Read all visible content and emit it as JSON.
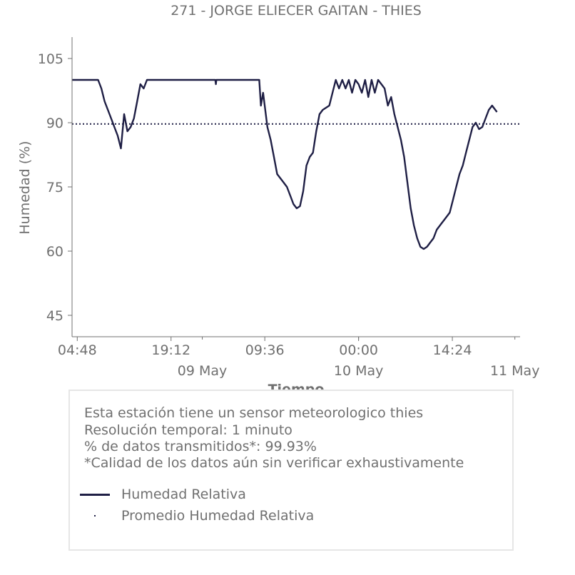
{
  "chart_data": {
    "type": "line",
    "title": "271 - JORGE ELIECER GAITAN - THIES",
    "xlabel": "Tiempo",
    "ylabel": "Humedad (%)",
    "ylim": [
      40,
      110
    ],
    "yticks": [
      45,
      60,
      75,
      90,
      105
    ],
    "xlim": [
      "2019-05-08 04:00",
      "2019-05-11 00:48"
    ],
    "xticks": [
      {
        "label": "04:48",
        "at": "2019-05-08 04:48"
      },
      {
        "label": "19:12",
        "at": "2019-05-08 19:12"
      },
      {
        "label": "09:36",
        "at": "2019-05-09 09:36"
      },
      {
        "label": "00:00",
        "at": "2019-05-10 00:00"
      },
      {
        "label": "14:24",
        "at": "2019-05-10 14:24"
      }
    ],
    "xticks_minor": [
      {
        "label": "09 May",
        "at": "2019-05-09 00:00"
      },
      {
        "label": "10 May",
        "at": "2019-05-10 00:00"
      },
      {
        "label": "11 May",
        "at": "2019-05-11 00:00"
      }
    ],
    "grid": false,
    "mean_line": {
      "name": "Promedio Humedad Relativa",
      "value": 89.7,
      "style": "dotted"
    },
    "series": [
      {
        "name": "Humedad Relativa",
        "color": "#1f1f45",
        "points": [
          [
            "2019-05-08 04:00",
            100
          ],
          [
            "2019-05-08 08:00",
            100
          ],
          [
            "2019-05-08 08:30",
            98
          ],
          [
            "2019-05-08 09:00",
            95
          ],
          [
            "2019-05-08 09:30",
            93
          ],
          [
            "2019-05-08 10:00",
            91
          ],
          [
            "2019-05-08 10:30",
            89
          ],
          [
            "2019-05-08 11:00",
            87
          ],
          [
            "2019-05-08 11:30",
            84
          ],
          [
            "2019-05-08 12:00",
            92
          ],
          [
            "2019-05-08 12:30",
            88
          ],
          [
            "2019-05-08 13:00",
            89
          ],
          [
            "2019-05-08 13:30",
            91
          ],
          [
            "2019-05-08 14:00",
            95
          ],
          [
            "2019-05-08 14:30",
            99
          ],
          [
            "2019-05-08 15:00",
            98
          ],
          [
            "2019-05-08 15:30",
            100
          ],
          [
            "2019-05-08 20:00",
            100
          ],
          [
            "2019-05-09 02:00",
            100
          ],
          [
            "2019-05-09 02:05",
            99
          ],
          [
            "2019-05-09 02:10",
            100
          ],
          [
            "2019-05-09 08:45",
            100
          ],
          [
            "2019-05-09 09:00",
            94
          ],
          [
            "2019-05-09 09:20",
            97
          ],
          [
            "2019-05-09 09:40",
            93
          ],
          [
            "2019-05-09 10:00",
            89
          ],
          [
            "2019-05-09 10:30",
            86
          ],
          [
            "2019-05-09 11:00",
            82
          ],
          [
            "2019-05-09 11:30",
            78
          ],
          [
            "2019-05-09 12:00",
            77
          ],
          [
            "2019-05-09 12:30",
            76
          ],
          [
            "2019-05-09 13:00",
            75
          ],
          [
            "2019-05-09 13:30",
            73
          ],
          [
            "2019-05-09 14:00",
            71
          ],
          [
            "2019-05-09 14:30",
            70
          ],
          [
            "2019-05-09 15:00",
            70.5
          ],
          [
            "2019-05-09 15:30",
            74
          ],
          [
            "2019-05-09 16:00",
            80
          ],
          [
            "2019-05-09 16:30",
            82
          ],
          [
            "2019-05-09 17:00",
            83
          ],
          [
            "2019-05-09 17:30",
            88
          ],
          [
            "2019-05-09 18:00",
            92
          ],
          [
            "2019-05-09 18:30",
            93
          ],
          [
            "2019-05-09 19:00",
            93.5
          ],
          [
            "2019-05-09 19:30",
            94
          ],
          [
            "2019-05-09 20:00",
            97
          ],
          [
            "2019-05-09 20:30",
            100
          ],
          [
            "2019-05-09 21:00",
            98
          ],
          [
            "2019-05-09 21:30",
            100
          ],
          [
            "2019-05-09 22:00",
            98
          ],
          [
            "2019-05-09 22:30",
            100
          ],
          [
            "2019-05-09 23:00",
            97
          ],
          [
            "2019-05-09 23:30",
            100
          ],
          [
            "2019-05-10 00:00",
            99
          ],
          [
            "2019-05-10 00:30",
            97
          ],
          [
            "2019-05-10 01:00",
            100
          ],
          [
            "2019-05-10 01:30",
            96
          ],
          [
            "2019-05-10 02:00",
            100
          ],
          [
            "2019-05-10 02:30",
            97
          ],
          [
            "2019-05-10 03:00",
            100
          ],
          [
            "2019-05-10 03:30",
            99
          ],
          [
            "2019-05-10 04:00",
            98
          ],
          [
            "2019-05-10 04:30",
            94
          ],
          [
            "2019-05-10 05:00",
            96
          ],
          [
            "2019-05-10 05:30",
            92
          ],
          [
            "2019-05-10 06:00",
            89
          ],
          [
            "2019-05-10 06:30",
            86
          ],
          [
            "2019-05-10 07:00",
            82
          ],
          [
            "2019-05-10 07:30",
            76
          ],
          [
            "2019-05-10 08:00",
            70
          ],
          [
            "2019-05-10 08:30",
            66
          ],
          [
            "2019-05-10 09:00",
            63
          ],
          [
            "2019-05-10 09:30",
            61
          ],
          [
            "2019-05-10 10:00",
            60.5
          ],
          [
            "2019-05-10 10:30",
            61
          ],
          [
            "2019-05-10 11:00",
            62
          ],
          [
            "2019-05-10 11:30",
            63
          ],
          [
            "2019-05-10 12:00",
            65
          ],
          [
            "2019-05-10 12:30",
            66
          ],
          [
            "2019-05-10 13:00",
            67
          ],
          [
            "2019-05-10 13:30",
            68
          ],
          [
            "2019-05-10 14:00",
            69
          ],
          [
            "2019-05-10 14:30",
            72
          ],
          [
            "2019-05-10 15:00",
            75
          ],
          [
            "2019-05-10 15:30",
            78
          ],
          [
            "2019-05-10 16:00",
            80
          ],
          [
            "2019-05-10 16:30",
            83
          ],
          [
            "2019-05-10 17:00",
            86
          ],
          [
            "2019-05-10 17:30",
            89
          ],
          [
            "2019-05-10 18:00",
            90
          ],
          [
            "2019-05-10 18:30",
            88.5
          ],
          [
            "2019-05-10 19:00",
            89
          ],
          [
            "2019-05-10 19:30",
            91
          ],
          [
            "2019-05-10 20:00",
            93
          ],
          [
            "2019-05-10 20:30",
            94
          ],
          [
            "2019-05-10 21:00",
            93
          ],
          [
            "2019-05-10 21:15",
            92.5
          ]
        ]
      }
    ]
  },
  "info": {
    "line1": "Esta estación tiene un sensor meteorologico thies",
    "line2": "Resolución temporal: 1 minuto",
    "line3": "% de datos transmitidos*: 99.93%",
    "line4": "*Calidad de los datos aún sin verificar exhaustivamente"
  },
  "legend": [
    {
      "label": "Humedad Relativa"
    },
    {
      "label": "Promedio Humedad Relativa"
    }
  ]
}
